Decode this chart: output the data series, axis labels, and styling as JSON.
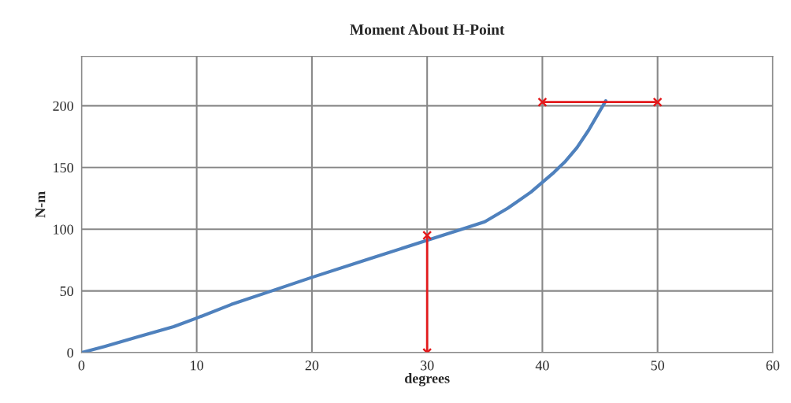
{
  "chart_data": {
    "type": "line",
    "title": "Moment About H-Point",
    "xlabel": "degrees",
    "ylabel": "N-m",
    "xlim": [
      0,
      60
    ],
    "xticks": [
      0,
      10,
      20,
      30,
      40,
      50,
      60
    ],
    "ylim": [
      0,
      240
    ],
    "yticks": [
      0,
      50,
      100,
      150,
      200
    ],
    "grid": true,
    "series": [
      {
        "color": "#4f81bd",
        "marker": "none",
        "x": [
          0,
          2,
          5,
          8,
          10,
          13,
          16.5,
          20,
          25,
          30,
          33,
          35,
          37,
          39,
          40,
          41,
          42,
          43,
          44,
          45,
          45.5
        ],
        "values": [
          0,
          5,
          13,
          21,
          28,
          39,
          50,
          61,
          76,
          91,
          100,
          106,
          117,
          130,
          138,
          146,
          155,
          166,
          180,
          196,
          204
        ]
      },
      {
        "color": "#e31a1c",
        "marker": "cross",
        "x": [
          30,
          30
        ],
        "values": [
          0,
          95
        ]
      },
      {
        "color": "#e31a1c",
        "marker": "cross",
        "x": [
          40,
          50
        ],
        "values": [
          203,
          203
        ]
      }
    ]
  }
}
